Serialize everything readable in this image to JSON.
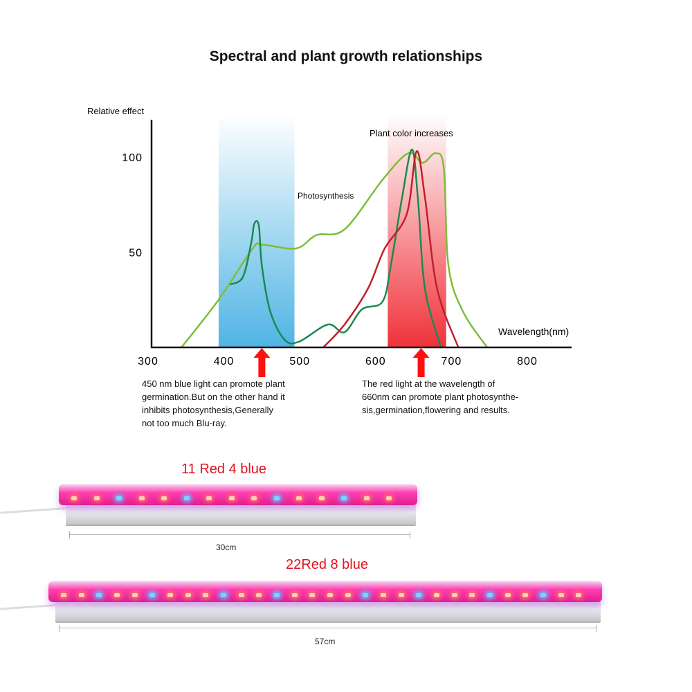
{
  "title": "Spectral and plant growth relationships",
  "chart_data": {
    "type": "line",
    "ylabel": "Relative effect",
    "xlabel": "Wavelength(nm)",
    "xlim": [
      300,
      850
    ],
    "ylim": [
      0,
      120
    ],
    "x_ticks": [
      300,
      400,
      500,
      600,
      700,
      800
    ],
    "y_ticks": [
      50,
      100
    ],
    "grid": false,
    "series": [
      {
        "name": "Photosynthesis",
        "color": "#7dbd3a",
        "points": [
          [
            344,
            0
          ],
          [
            393,
            25
          ],
          [
            438,
            52
          ],
          [
            450,
            54
          ],
          [
            495,
            52
          ],
          [
            522,
            59
          ],
          [
            559,
            62
          ],
          [
            609,
            88
          ],
          [
            643,
            102
          ],
          [
            662,
            97
          ],
          [
            679,
            102
          ],
          [
            690,
            94
          ],
          [
            696,
            43
          ],
          [
            715,
            19
          ],
          [
            747,
            0
          ]
        ]
      },
      {
        "color": "#1a8a50",
        "points": [
          [
            408,
            33
          ],
          [
            425,
            37
          ],
          [
            436,
            55
          ],
          [
            440,
            65
          ],
          [
            446,
            64
          ],
          [
            450,
            43
          ],
          [
            461,
            19
          ],
          [
            480,
            4
          ],
          [
            499,
            3
          ],
          [
            537,
            12
          ],
          [
            559,
            8
          ],
          [
            582,
            20
          ],
          [
            609,
            24
          ],
          [
            620,
            43
          ],
          [
            635,
            79
          ],
          [
            648,
            104
          ],
          [
            656,
            77
          ],
          [
            665,
            31
          ],
          [
            686,
            0
          ]
        ]
      },
      {
        "color": "#c0202a",
        "points": [
          [
            531,
            0
          ],
          [
            559,
            12
          ],
          [
            590,
            31
          ],
          [
            612,
            52
          ],
          [
            641,
            70
          ],
          [
            654,
            103
          ],
          [
            665,
            79
          ],
          [
            681,
            31
          ],
          [
            709,
            0
          ]
        ]
      }
    ],
    "bands": [
      {
        "from": 393,
        "to": 493,
        "color": "#4fb4e4"
      },
      {
        "from": 616,
        "to": 693,
        "color": "#f0323a"
      }
    ],
    "arrows": [
      450,
      660
    ],
    "annotations": {
      "photosynthesis": "Photosynthesis",
      "plant_color": "Plant color increases"
    }
  },
  "captions": {
    "blue": [
      "450 nm blue light can promote plant",
      "germination.But on the other hand it",
      "inhibits photosynthesis,Generally",
      "not too much Blu-ray."
    ],
    "red": [
      "The red light at the wavelength of",
      "660nm can promote plant photosynthe-",
      "sis,germination,flowering and results."
    ]
  },
  "products": [
    {
      "label": "11 Red 4 blue",
      "length": "30cm",
      "leds": "RRBRRBRRRBRRBRR"
    },
    {
      "label": "22Red 8 blue",
      "length": "57cm",
      "leds": "RRBRRBRRRBRRBRRRRBRRBRRRBRRBRR"
    }
  ],
  "colors": {
    "accent_red": "#e0141e",
    "led_red": "#ff4a6a",
    "led_blue": "#7fd0ff",
    "tube": "#ff2fa6"
  }
}
